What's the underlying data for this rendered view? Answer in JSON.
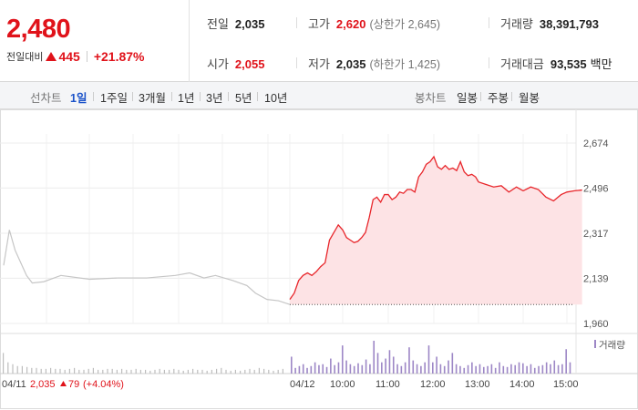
{
  "summary": {
    "current_price": "2,480",
    "change_label": "전일대비",
    "change_value": "445",
    "change_percent": "+21.87%",
    "up_color": "#e0121a"
  },
  "stats": {
    "prev_close": {
      "label": "전일",
      "value": "2,035"
    },
    "high": {
      "label": "고가",
      "value": "2,620",
      "sub": "(상한가 2,645)"
    },
    "volume": {
      "label": "거래량",
      "value": "38,391,793"
    },
    "open": {
      "label": "시가",
      "value": "2,055"
    },
    "low": {
      "label": "저가",
      "value": "2,035",
      "sub": "(하한가 1,425)"
    },
    "turnover": {
      "label": "거래대금",
      "value": "93,535",
      "unit": "백만"
    }
  },
  "period_bar": {
    "line_label": "선차트",
    "line_periods": [
      "1일",
      "1주일",
      "3개월",
      "1년",
      "3년",
      "5년",
      "10년"
    ],
    "active_period": "1일",
    "candle_label": "봉차트",
    "candle_periods": [
      "일봉",
      "주봉",
      "월봉"
    ]
  },
  "chart_data": {
    "type": "line",
    "y_ticks": [
      "2,674",
      "2,496",
      "2,317",
      "2,139",
      "1,960"
    ],
    "ylim": [
      1960,
      2674
    ],
    "x_tick_labels": [
      "04/11",
      "04/12",
      "10:00",
      "11:00",
      "12:00",
      "13:00",
      "14:00",
      "15:00"
    ],
    "prev_day_caption": {
      "date": "04/11",
      "price": "2,035",
      "change": "79",
      "percent": "(+4.04%)"
    },
    "volume_legend": "거래량",
    "line_color": "#e8262b",
    "area_fill": "#fde3e5",
    "prev_day_color": "#c6c6c6",
    "volume_color": "#9d87c6",
    "prev_day_series": {
      "name": "04/11",
      "x": [
        0,
        0.02,
        0.04,
        0.06,
        0.08,
        0.1,
        0.14,
        0.2,
        0.3,
        0.4,
        0.5,
        0.6,
        0.65,
        0.7,
        0.74,
        0.8,
        0.85,
        0.88,
        0.92,
        0.96,
        1.0
      ],
      "y": [
        2190,
        2330,
        2250,
        2200,
        2150,
        2120,
        2125,
        2150,
        2135,
        2140,
        2140,
        2150,
        2160,
        2140,
        2150,
        2130,
        2110,
        2080,
        2055,
        2050,
        2035
      ]
    },
    "today_series": {
      "name": "04/12",
      "x": [
        "09:00",
        "09:05",
        "09:10",
        "09:15",
        "09:20",
        "09:25",
        "09:30",
        "09:35",
        "09:40",
        "09:45",
        "09:50",
        "09:55",
        "10:00",
        "10:05",
        "10:10",
        "10:15",
        "10:20",
        "10:25",
        "10:30",
        "10:35",
        "10:40",
        "10:45",
        "10:50",
        "10:55",
        "11:00",
        "11:05",
        "11:10",
        "11:15",
        "11:20",
        "11:25",
        "11:30",
        "11:35",
        "11:40",
        "11:45",
        "11:50",
        "11:55",
        "12:00",
        "12:05",
        "12:10",
        "12:15",
        "12:20",
        "12:25",
        "12:30",
        "12:35",
        "12:40",
        "12:45",
        "12:50",
        "12:55",
        "13:00",
        "13:10",
        "13:20",
        "13:30",
        "13:40",
        "13:50",
        "14:00",
        "14:10",
        "14:20",
        "14:30",
        "14:40",
        "14:50",
        "15:00",
        "15:10",
        "15:20"
      ],
      "y": [
        2055,
        2080,
        2130,
        2150,
        2160,
        2150,
        2165,
        2185,
        2200,
        2290,
        2320,
        2350,
        2330,
        2300,
        2290,
        2280,
        2285,
        2300,
        2320,
        2380,
        2450,
        2460,
        2440,
        2470,
        2470,
        2450,
        2460,
        2480,
        2475,
        2490,
        2490,
        2480,
        2540,
        2560,
        2590,
        2600,
        2620,
        2580,
        2570,
        2585,
        2570,
        2575,
        2565,
        2600,
        2560,
        2545,
        2550,
        2540,
        2520,
        2510,
        2500,
        2505,
        2480,
        2500,
        2485,
        2500,
        2490,
        2460,
        2445,
        2470,
        2480,
        2485,
        2488
      ]
    },
    "prev_day_volume": [
      22,
      12,
      10,
      8,
      8,
      7,
      6,
      6,
      5,
      5,
      6,
      5,
      5,
      4,
      5,
      6,
      4,
      4,
      5,
      6,
      4,
      4,
      5,
      5,
      4,
      5,
      4,
      4,
      5,
      4,
      4,
      3,
      4,
      5,
      4,
      4,
      5,
      4,
      3,
      4,
      5,
      4,
      4,
      3,
      4,
      5,
      6,
      4,
      3,
      4,
      3,
      4,
      5,
      4,
      6,
      5,
      4,
      3,
      4,
      5
    ],
    "today_volume": [
      18,
      6,
      8,
      10,
      6,
      8,
      12,
      9,
      10,
      7,
      16,
      9,
      12,
      30,
      14,
      10,
      8,
      11,
      9,
      15,
      10,
      35,
      22,
      12,
      16,
      25,
      18,
      10,
      8,
      12,
      28,
      14,
      10,
      8,
      12,
      30,
      12,
      18,
      10,
      8,
      14,
      22,
      10,
      8,
      6,
      9,
      12,
      8,
      10,
      7,
      8,
      10,
      6,
      12,
      8,
      7,
      10,
      9,
      12,
      11,
      8,
      10,
      6,
      8,
      9,
      12,
      10,
      14,
      9,
      10,
      26,
      12
    ]
  }
}
